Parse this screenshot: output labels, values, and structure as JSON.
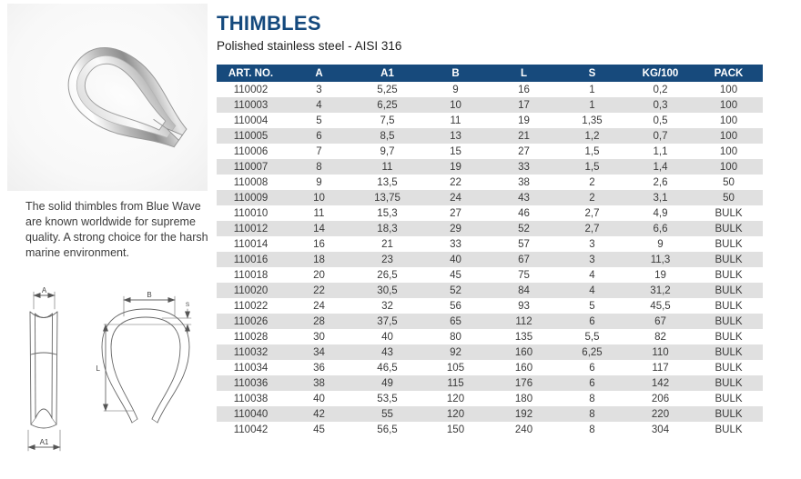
{
  "page": {
    "title": "THIMBLES",
    "subtitle": "Polished stainless steel - AISI 316",
    "description": "The solid thimbles from Blue Wave are known worldwide for supreme quality. A strong choice for the harsh marine environment."
  },
  "colors": {
    "accent_blue": "#174A7C",
    "title_blue": "#14497D",
    "row_stripe_gray": "#E0E0E0",
    "body_text": "#3A3A3A"
  },
  "diagram": {
    "dim_a": "A",
    "dim_a1": "A1",
    "dim_b": "B",
    "dim_s": "S",
    "dim_l": "L"
  },
  "table": {
    "columns": [
      "ART. NO.",
      "A",
      "A1",
      "B",
      "L",
      "S",
      "KG/100",
      "PACK"
    ],
    "rows": [
      [
        "110002",
        "3",
        "5,25",
        "9",
        "16",
        "1",
        "0,2",
        "100"
      ],
      [
        "110003",
        "4",
        "6,25",
        "10",
        "17",
        "1",
        "0,3",
        "100"
      ],
      [
        "110004",
        "5",
        "7,5",
        "11",
        "19",
        "1,35",
        "0,5",
        "100"
      ],
      [
        "110005",
        "6",
        "8,5",
        "13",
        "21",
        "1,2",
        "0,7",
        "100"
      ],
      [
        "110006",
        "7",
        "9,7",
        "15",
        "27",
        "1,5",
        "1,1",
        "100"
      ],
      [
        "110007",
        "8",
        "11",
        "19",
        "33",
        "1,5",
        "1,4",
        "100"
      ],
      [
        "110008",
        "9",
        "13,5",
        "22",
        "38",
        "2",
        "2,6",
        "50"
      ],
      [
        "110009",
        "10",
        "13,75",
        "24",
        "43",
        "2",
        "3,1",
        "50"
      ],
      [
        "110010",
        "11",
        "15,3",
        "27",
        "46",
        "2,7",
        "4,9",
        "BULK"
      ],
      [
        "110012",
        "14",
        "18,3",
        "29",
        "52",
        "2,7",
        "6,6",
        "BULK"
      ],
      [
        "110014",
        "16",
        "21",
        "33",
        "57",
        "3",
        "9",
        "BULK"
      ],
      [
        "110016",
        "18",
        "23",
        "40",
        "67",
        "3",
        "11,3",
        "BULK"
      ],
      [
        "110018",
        "20",
        "26,5",
        "45",
        "75",
        "4",
        "19",
        "BULK"
      ],
      [
        "110020",
        "22",
        "30,5",
        "52",
        "84",
        "4",
        "31,2",
        "BULK"
      ],
      [
        "110022",
        "24",
        "32",
        "56",
        "93",
        "5",
        "45,5",
        "BULK"
      ],
      [
        "110026",
        "28",
        "37,5",
        "65",
        "112",
        "6",
        "67",
        "BULK"
      ],
      [
        "110028",
        "30",
        "40",
        "80",
        "135",
        "5,5",
        "82",
        "BULK"
      ],
      [
        "110032",
        "34",
        "43",
        "92",
        "160",
        "6,25",
        "110",
        "BULK"
      ],
      [
        "110034",
        "36",
        "46,5",
        "105",
        "160",
        "6",
        "117",
        "BULK"
      ],
      [
        "110036",
        "38",
        "49",
        "115",
        "176",
        "6",
        "142",
        "BULK"
      ],
      [
        "110038",
        "40",
        "53,5",
        "120",
        "180",
        "8",
        "206",
        "BULK"
      ],
      [
        "110040",
        "42",
        "55",
        "120",
        "192",
        "8",
        "220",
        "BULK"
      ],
      [
        "110042",
        "45",
        "56,5",
        "150",
        "240",
        "8",
        "304",
        "BULK"
      ]
    ]
  }
}
